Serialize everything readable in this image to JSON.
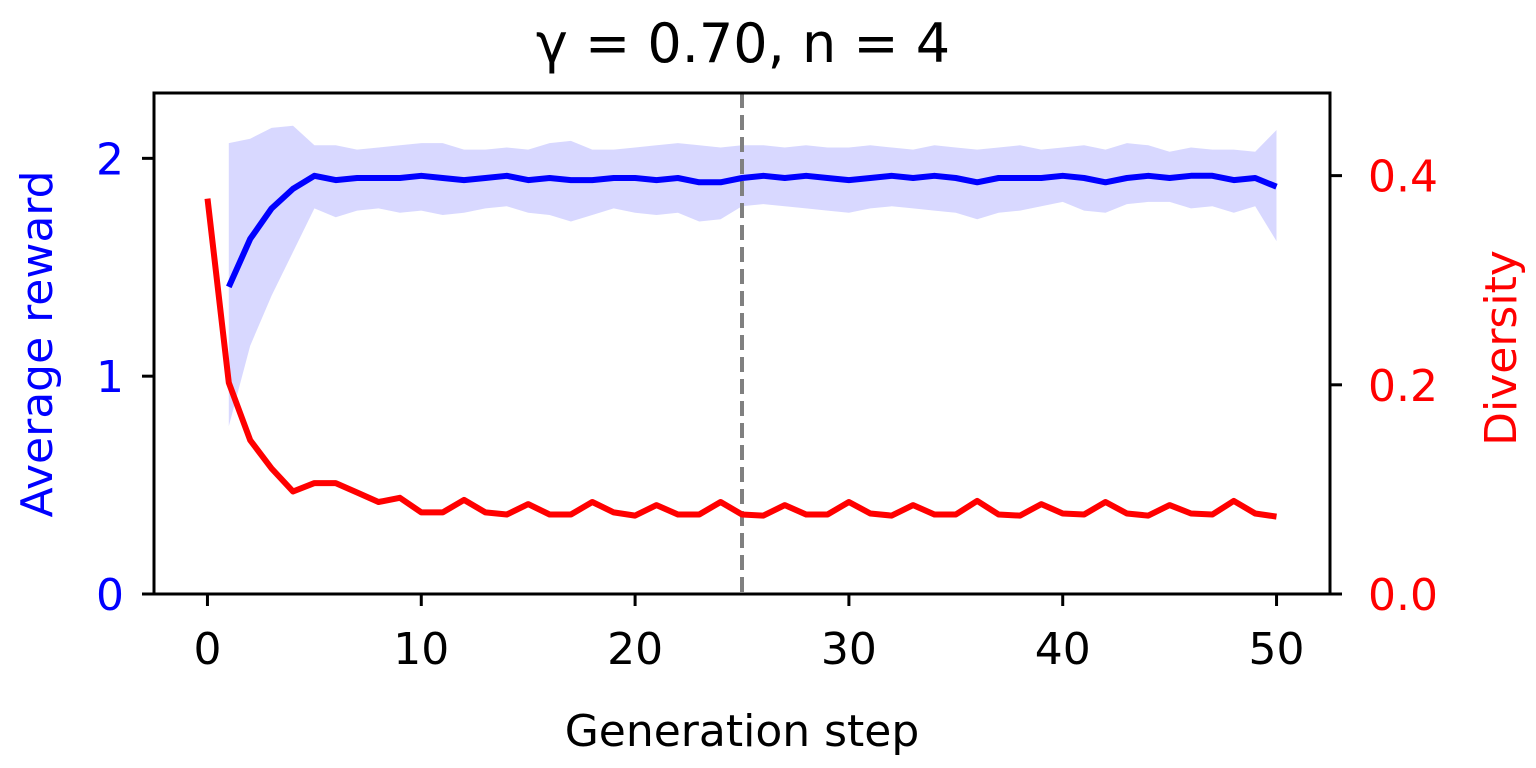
{
  "chart_data": {
    "type": "line",
    "title": "γ = 0.70, n = 4",
    "xlabel": "Generation step",
    "ylabel_left": "Average reward",
    "ylabel_right": "Diversity",
    "xlim": [
      -2.5,
      52.5
    ],
    "ylim_left": [
      0,
      2.3
    ],
    "ylim_right": [
      0,
      0.479
    ],
    "x_ticks": [
      0,
      10,
      20,
      30,
      40,
      50
    ],
    "x_tick_labels": [
      "0",
      "10",
      "20",
      "30",
      "40",
      "50"
    ],
    "y_left_ticks": [
      0,
      1,
      2
    ],
    "y_left_tick_labels": [
      "0",
      "1",
      "2"
    ],
    "y_right_ticks": [
      0.0,
      0.2,
      0.4
    ],
    "y_right_tick_labels": [
      "0.0",
      "0.2",
      "0.4"
    ],
    "vline_x": 25,
    "colors": {
      "reward": "#0000ff",
      "reward_band": "#d8d8ff",
      "diversity": "#ff0000",
      "vline": "#808080",
      "axes": "#000000"
    },
    "series": [
      {
        "name": "Average reward",
        "axis": "left",
        "x": [
          1,
          2,
          3,
          4,
          5,
          6,
          7,
          8,
          9,
          10,
          11,
          12,
          13,
          14,
          15,
          16,
          17,
          18,
          19,
          20,
          21,
          22,
          23,
          24,
          25,
          26,
          27,
          28,
          29,
          30,
          31,
          32,
          33,
          34,
          35,
          36,
          37,
          38,
          39,
          40,
          41,
          42,
          43,
          44,
          45,
          46,
          47,
          48,
          49,
          50
        ],
        "values": [
          1.41,
          1.63,
          1.77,
          1.86,
          1.92,
          1.9,
          1.91,
          1.91,
          1.91,
          1.92,
          1.91,
          1.9,
          1.91,
          1.92,
          1.9,
          1.91,
          1.9,
          1.9,
          1.91,
          1.91,
          1.9,
          1.91,
          1.89,
          1.89,
          1.91,
          1.92,
          1.91,
          1.92,
          1.91,
          1.9,
          1.91,
          1.92,
          1.91,
          1.92,
          1.91,
          1.89,
          1.91,
          1.91,
          1.91,
          1.92,
          1.91,
          1.89,
          1.91,
          1.92,
          1.91,
          1.92,
          1.92,
          1.9,
          1.91,
          1.87
        ],
        "band_upper": [
          2.07,
          2.09,
          2.14,
          2.15,
          2.06,
          2.06,
          2.04,
          2.05,
          2.06,
          2.07,
          2.07,
          2.04,
          2.04,
          2.05,
          2.04,
          2.07,
          2.08,
          2.04,
          2.04,
          2.05,
          2.06,
          2.07,
          2.06,
          2.05,
          2.06,
          2.06,
          2.05,
          2.06,
          2.05,
          2.05,
          2.06,
          2.05,
          2.04,
          2.06,
          2.05,
          2.04,
          2.05,
          2.06,
          2.04,
          2.05,
          2.06,
          2.04,
          2.07,
          2.06,
          2.03,
          2.05,
          2.04,
          2.04,
          2.03,
          2.13
        ],
        "band_lower": [
          0.77,
          1.14,
          1.37,
          1.57,
          1.77,
          1.73,
          1.76,
          1.77,
          1.75,
          1.76,
          1.74,
          1.75,
          1.77,
          1.78,
          1.75,
          1.74,
          1.71,
          1.74,
          1.77,
          1.75,
          1.74,
          1.75,
          1.71,
          1.72,
          1.78,
          1.79,
          1.78,
          1.77,
          1.76,
          1.75,
          1.77,
          1.78,
          1.77,
          1.76,
          1.75,
          1.72,
          1.75,
          1.76,
          1.78,
          1.8,
          1.76,
          1.75,
          1.79,
          1.8,
          1.8,
          1.77,
          1.78,
          1.75,
          1.78,
          1.62
        ]
      },
      {
        "name": "Diversity",
        "axis": "right",
        "x": [
          0,
          1,
          2,
          3,
          4,
          5,
          6,
          7,
          8,
          9,
          10,
          11,
          12,
          13,
          14,
          15,
          16,
          17,
          18,
          19,
          20,
          21,
          22,
          23,
          24,
          25,
          26,
          27,
          28,
          29,
          30,
          31,
          32,
          33,
          34,
          35,
          36,
          37,
          38,
          39,
          40,
          41,
          42,
          43,
          44,
          45,
          46,
          47,
          48,
          49,
          50
        ],
        "values": [
          0.378,
          0.202,
          0.147,
          0.12,
          0.098,
          0.106,
          0.106,
          0.097,
          0.088,
          0.092,
          0.078,
          0.078,
          0.09,
          0.078,
          0.076,
          0.086,
          0.076,
          0.076,
          0.088,
          0.078,
          0.075,
          0.085,
          0.076,
          0.076,
          0.088,
          0.076,
          0.075,
          0.085,
          0.076,
          0.076,
          0.088,
          0.077,
          0.075,
          0.085,
          0.076,
          0.076,
          0.089,
          0.076,
          0.075,
          0.086,
          0.077,
          0.076,
          0.088,
          0.077,
          0.075,
          0.085,
          0.077,
          0.076,
          0.089,
          0.077,
          0.074
        ]
      }
    ]
  }
}
